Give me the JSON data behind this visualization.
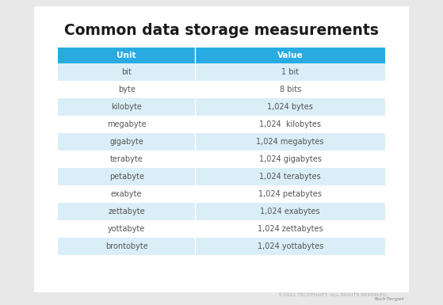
{
  "title": "Common data storage measurements",
  "title_fontsize": 13.5,
  "title_fontweight": "bold",
  "title_color": "#1a1a1a",
  "bg_color": "#e8e8e8",
  "card_color": "#ffffff",
  "header_bg": "#29abe2",
  "header_text_color": "#ffffff",
  "header_labels": [
    "Unit",
    "Value"
  ],
  "row_alt_color": "#daeef8",
  "row_plain_color": "#ffffff",
  "rows": [
    [
      "bit",
      "1 bit"
    ],
    [
      "byte",
      "8 bits"
    ],
    [
      "kilobyte",
      "1,024 bytes"
    ],
    [
      "megabyte",
      "1,024  kilobytes"
    ],
    [
      "gigabyte",
      "1,024 megabytes"
    ],
    [
      "terabyte",
      "1,024 gigabytes"
    ],
    [
      "petabyte",
      "1,024 terabytes"
    ],
    [
      "exabyte",
      "1,024 petabytes"
    ],
    [
      "zettabyte",
      "1,024 exabytes"
    ],
    [
      "yottabyte",
      "1,024 zettabytes"
    ],
    [
      "brontobyte",
      "1,024 yottabytes"
    ]
  ],
  "cell_text_color": "#555555",
  "cell_fontsize": 7,
  "header_fontsize": 7.5,
  "footer_text": "©2022 TECHTHGET. ALL RIGHTS RESERVED.",
  "footer_color": "#aaaaaa",
  "footer_fontsize": 4.5,
  "logo_text": "TechTarget",
  "logo_fontsize": 4.5
}
